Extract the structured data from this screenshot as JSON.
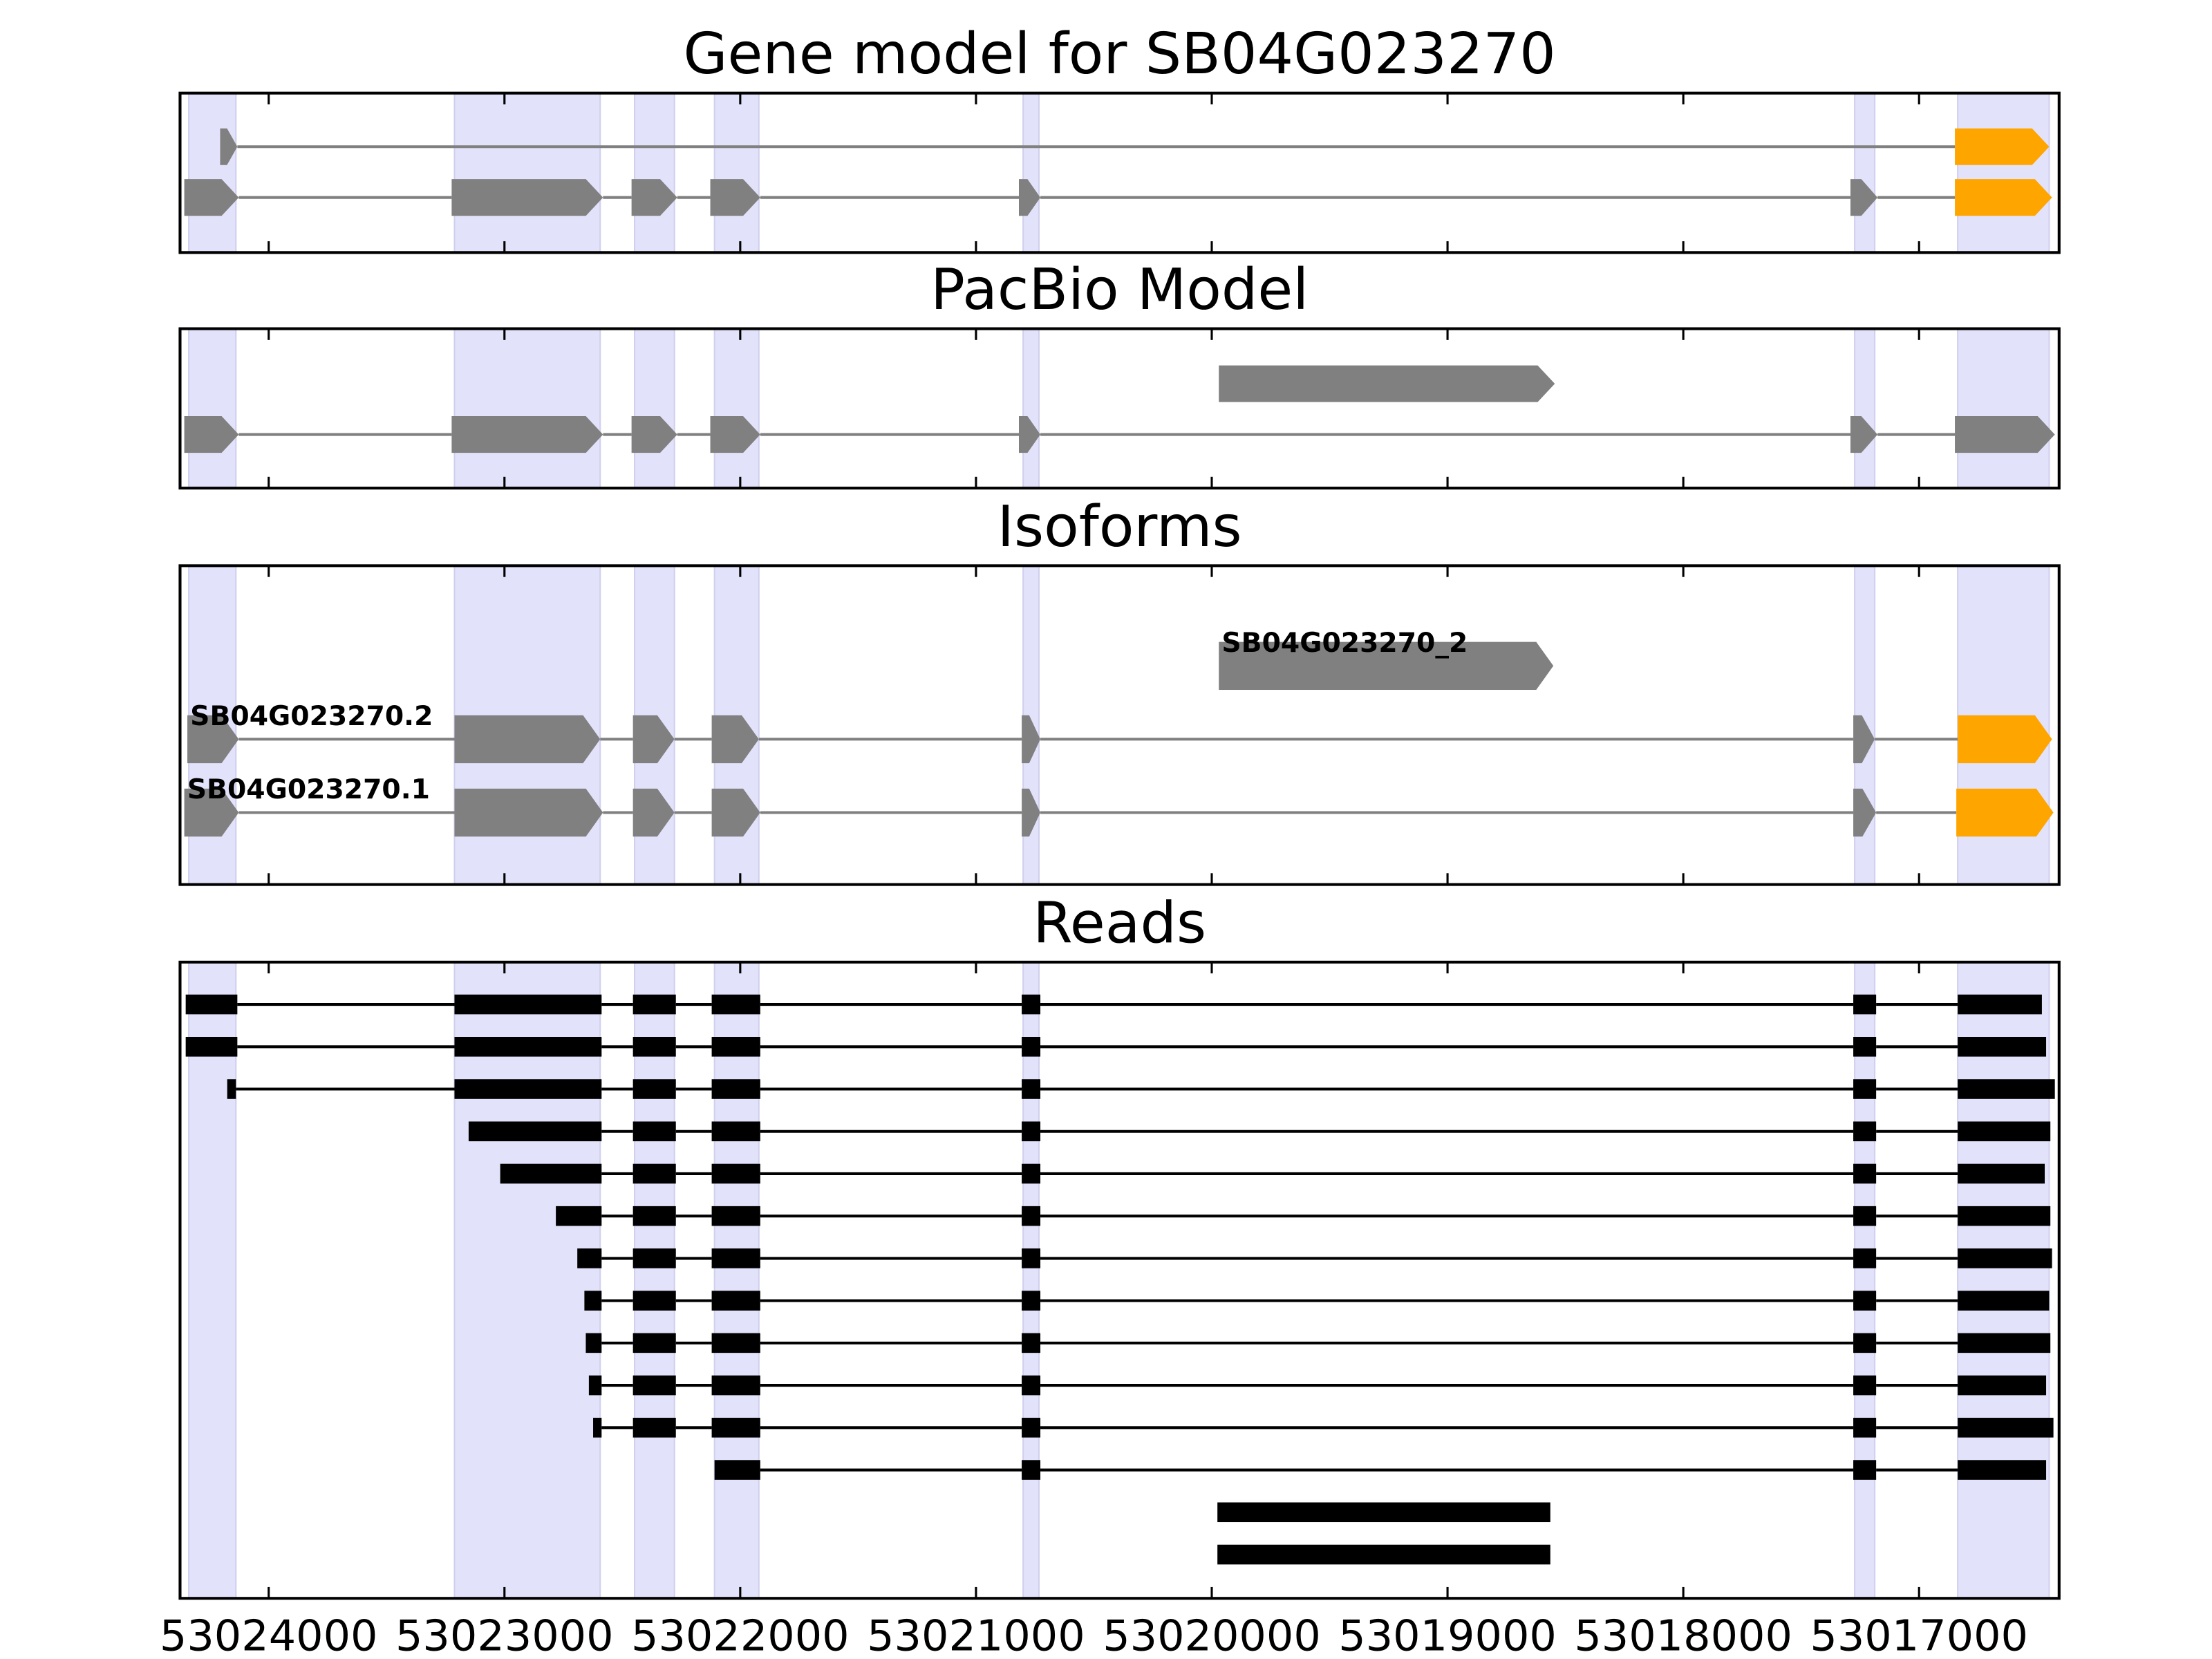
{
  "chart_data": {
    "type": "gene_tracks",
    "xlim": [
      53024376,
      53016406
    ],
    "xticks": [
      53024000,
      53023000,
      53022000,
      53021000,
      53020000,
      53019000,
      53018000,
      53017000
    ],
    "exons": [
      [
        53024339,
        53024139
      ],
      [
        53023212,
        53022594
      ],
      [
        53022448,
        53022279
      ],
      [
        53022109,
        53021921
      ],
      [
        53020800,
        53020733
      ],
      [
        53017273,
        53017188
      ],
      [
        53016836,
        53016448
      ]
    ],
    "panels": [
      {
        "title": "Gene model for SB04G023270",
        "style": "arrow",
        "rows": [
          {
            "blocks": [
              [
                53024206,
                53024133
              ],
              [
                53016848,
                53016448
              ]
            ],
            "colors": [
              "#808080",
              "#ffa500"
            ]
          },
          {
            "blocks": [
              [
                53024358,
                53024127
              ],
              [
                53023224,
                53022582
              ],
              [
                53022461,
                53022267
              ],
              [
                53022127,
                53021915
              ],
              [
                53020818,
                53020727
              ],
              [
                53017291,
                53017176
              ],
              [
                53016848,
                53016436
              ]
            ],
            "colors": [
              "#808080",
              "#808080",
              "#808080",
              "#808080",
              "#808080",
              "#808080",
              "#ffa500"
            ]
          }
        ]
      },
      {
        "title": "PacBio Model",
        "style": "arrow",
        "rows": [
          {
            "blocks": [
              [
                53019970,
                53018545
              ]
            ],
            "colors": [
              "#808080"
            ]
          },
          {
            "blocks": [
              [
                53024358,
                53024127
              ],
              [
                53023224,
                53022582
              ],
              [
                53022461,
                53022267
              ],
              [
                53022127,
                53021915
              ],
              [
                53020818,
                53020727
              ],
              [
                53017291,
                53017176
              ],
              [
                53016848,
                53016424
              ]
            ],
            "colors": [
              "#808080",
              "#808080",
              "#808080",
              "#808080",
              "#808080",
              "#808080",
              "#808080"
            ]
          }
        ]
      },
      {
        "title": "Isoforms",
        "style": "arrow",
        "rows": [
          {
            "label": "SB04G023270_2",
            "blocks": [
              [
                53019970,
                53018551
              ]
            ],
            "colors": [
              "#808080"
            ]
          },
          {
            "label": "SB04G023270.2",
            "blocks": [
              [
                53024345,
                53024127
              ],
              [
                53023212,
                53022594
              ],
              [
                53022455,
                53022279
              ],
              [
                53022121,
                53021921
              ],
              [
                53020806,
                53020727
              ],
              [
                53017279,
                53017188
              ],
              [
                53016836,
                53016436
              ]
            ],
            "colors": [
              "#808080",
              "#808080",
              "#808080",
              "#808080",
              "#808080",
              "#808080",
              "#ffa500"
            ]
          },
          {
            "label": "SB04G023270.1",
            "blocks": [
              [
                53024358,
                53024127
              ],
              [
                53023212,
                53022582
              ],
              [
                53022455,
                53022279
              ],
              [
                53022121,
                53021915
              ],
              [
                53020806,
                53020727
              ],
              [
                53017279,
                53017182
              ],
              [
                53016842,
                53016430
              ]
            ],
            "colors": [
              "#808080",
              "#808080",
              "#808080",
              "#808080",
              "#808080",
              "#808080",
              "#ffa500"
            ]
          }
        ]
      },
      {
        "title": "Reads",
        "style": "bar",
        "color": "#000000",
        "rows": [
          {
            "blocks": [
              [
                53024352,
                53024133
              ],
              [
                53023212,
                53022588
              ],
              [
                53022455,
                53022273
              ],
              [
                53022121,
                53021915
              ],
              [
                53020806,
                53020727
              ],
              [
                53017279,
                53017182
              ],
              [
                53016836,
                53016479
              ]
            ]
          },
          {
            "blocks": [
              [
                53024352,
                53024133
              ],
              [
                53023212,
                53022588
              ],
              [
                53022455,
                53022273
              ],
              [
                53022121,
                53021915
              ],
              [
                53020806,
                53020727
              ],
              [
                53017279,
                53017182
              ],
              [
                53016836,
                53016461
              ]
            ]
          },
          {
            "blocks": [
              [
                53024176,
                53024139
              ],
              [
                53023212,
                53022588
              ],
              [
                53022455,
                53022273
              ],
              [
                53022121,
                53021915
              ],
              [
                53020806,
                53020727
              ],
              [
                53017279,
                53017182
              ],
              [
                53016836,
                53016424
              ]
            ]
          },
          {
            "blocks": [
              [
                53023152,
                53022588
              ],
              [
                53022455,
                53022273
              ],
              [
                53022121,
                53021915
              ],
              [
                53020806,
                53020727
              ],
              [
                53017279,
                53017182
              ],
              [
                53016836,
                53016443
              ]
            ]
          },
          {
            "blocks": [
              [
                53023018,
                53022588
              ],
              [
                53022455,
                53022273
              ],
              [
                53022121,
                53021915
              ],
              [
                53020806,
                53020727
              ],
              [
                53017279,
                53017182
              ],
              [
                53016836,
                53016467
              ]
            ]
          },
          {
            "blocks": [
              [
                53022782,
                53022588
              ],
              [
                53022455,
                53022273
              ],
              [
                53022121,
                53021915
              ],
              [
                53020806,
                53020727
              ],
              [
                53017279,
                53017182
              ],
              [
                53016836,
                53016443
              ]
            ]
          },
          {
            "blocks": [
              [
                53022691,
                53022588
              ],
              [
                53022455,
                53022273
              ],
              [
                53022121,
                53021915
              ],
              [
                53020806,
                53020727
              ],
              [
                53017279,
                53017182
              ],
              [
                53016836,
                53016436
              ]
            ]
          },
          {
            "blocks": [
              [
                53022661,
                53022588
              ],
              [
                53022455,
                53022273
              ],
              [
                53022121,
                53021915
              ],
              [
                53020806,
                53020727
              ],
              [
                53017279,
                53017182
              ],
              [
                53016836,
                53016448
              ]
            ]
          },
          {
            "blocks": [
              [
                53022655,
                53022588
              ],
              [
                53022455,
                53022273
              ],
              [
                53022121,
                53021915
              ],
              [
                53020806,
                53020727
              ],
              [
                53017279,
                53017182
              ],
              [
                53016836,
                53016443
              ]
            ]
          },
          {
            "blocks": [
              [
                53022642,
                53022588
              ],
              [
                53022455,
                53022273
              ],
              [
                53022121,
                53021915
              ],
              [
                53020806,
                53020727
              ],
              [
                53017279,
                53017182
              ],
              [
                53016836,
                53016461
              ]
            ]
          },
          {
            "blocks": [
              [
                53022624,
                53022588
              ],
              [
                53022455,
                53022273
              ],
              [
                53022121,
                53021915
              ],
              [
                53020806,
                53020727
              ],
              [
                53017279,
                53017182
              ],
              [
                53016836,
                53016430
              ]
            ]
          },
          {
            "blocks": [
              [
                53022109,
                53021915
              ],
              [
                53020806,
                53020727
              ],
              [
                53017279,
                53017182
              ],
              [
                53016836,
                53016461
              ]
            ]
          },
          {
            "blocks": [
              [
                53019976,
                53018564
              ]
            ]
          },
          {
            "blocks": [
              [
                53019976,
                53018564
              ]
            ]
          }
        ]
      }
    ]
  }
}
